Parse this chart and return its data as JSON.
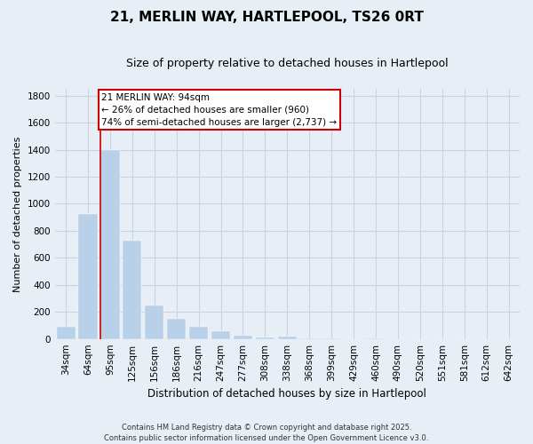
{
  "title": "21, MERLIN WAY, HARTLEPOOL, TS26 0RT",
  "subtitle": "Size of property relative to detached houses in Hartlepool",
  "xlabel": "Distribution of detached houses by size in Hartlepool",
  "ylabel": "Number of detached properties",
  "categories": [
    "34sqm",
    "64sqm",
    "95sqm",
    "125sqm",
    "156sqm",
    "186sqm",
    "216sqm",
    "247sqm",
    "277sqm",
    "308sqm",
    "338sqm",
    "368sqm",
    "399sqm",
    "429sqm",
    "460sqm",
    "490sqm",
    "520sqm",
    "551sqm",
    "581sqm",
    "612sqm",
    "642sqm"
  ],
  "values": [
    90,
    925,
    1400,
    730,
    250,
    150,
    90,
    55,
    25,
    10,
    20,
    5,
    5,
    0,
    5,
    0,
    0,
    0,
    0,
    0,
    0
  ],
  "bar_color": "#b8d0e8",
  "bar_edge_color": "#b8d0e8",
  "grid_color": "#c8d4e4",
  "bg_color": "#e8eef6",
  "line_color": "#cc0000",
  "line_x_index": 2,
  "annotation_line1": "21 MERLIN WAY: 94sqm",
  "annotation_line2": "← 26% of detached houses are smaller (960)",
  "annotation_line3": "74% of semi-detached houses are larger (2,737) →",
  "annotation_box_color": "#cc0000",
  "ylim": [
    0,
    1850
  ],
  "yticks": [
    0,
    200,
    400,
    600,
    800,
    1000,
    1200,
    1400,
    1600,
    1800
  ],
  "footer": "Contains HM Land Registry data © Crown copyright and database right 2025.\nContains public sector information licensed under the Open Government Licence v3.0.",
  "title_fontsize": 11,
  "subtitle_fontsize": 9,
  "ylabel_fontsize": 8,
  "xlabel_fontsize": 8.5,
  "tick_fontsize": 7.5,
  "annotation_fontsize": 7.5,
  "footer_fontsize": 6
}
